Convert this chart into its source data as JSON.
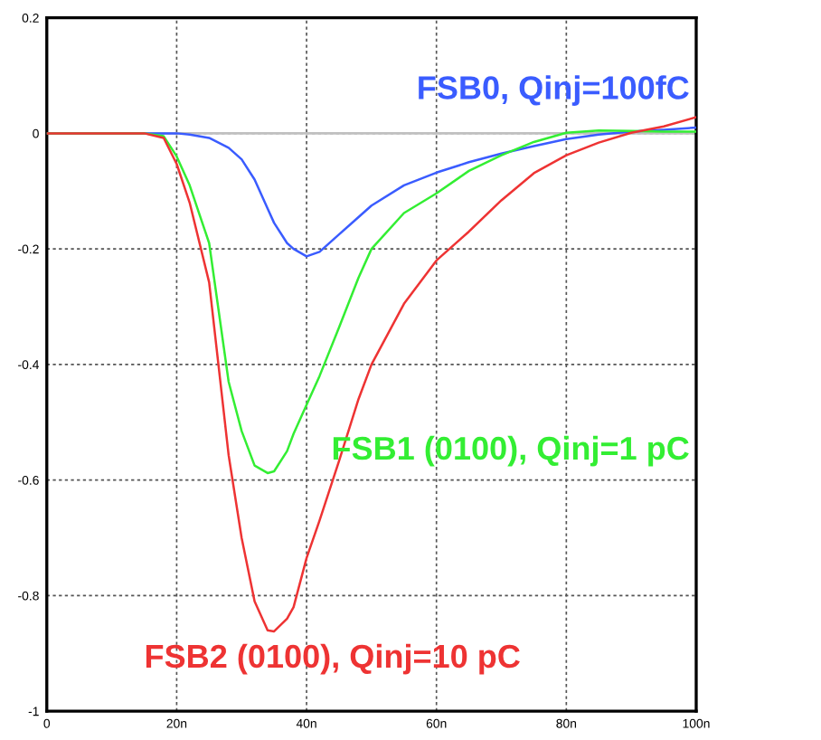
{
  "chart_data": {
    "type": "line",
    "x": [
      0,
      15,
      18,
      20,
      22,
      25,
      28,
      30,
      32,
      34,
      35,
      37,
      38,
      40,
      42,
      45,
      48,
      50,
      55,
      60,
      65,
      70,
      75,
      80,
      85,
      90,
      95,
      100
    ],
    "series": [
      {
        "name": "FSB0, Qinj=100fC",
        "color": "#3a5cff",
        "values": [
          0,
          0,
          0,
          0,
          -0.002,
          -0.008,
          -0.025,
          -0.045,
          -0.08,
          -0.13,
          -0.155,
          -0.19,
          -0.2,
          -0.213,
          -0.205,
          -0.175,
          -0.145,
          -0.125,
          -0.09,
          -0.068,
          -0.05,
          -0.035,
          -0.022,
          -0.01,
          -0.002,
          0.003,
          0.006,
          0.01
        ]
      },
      {
        "name": "FSB1 (0100), Qinj=1 pC",
        "color": "#33ee33",
        "values": [
          0,
          0,
          -0.005,
          -0.04,
          -0.09,
          -0.19,
          -0.43,
          -0.515,
          -0.575,
          -0.588,
          -0.585,
          -0.55,
          -0.52,
          -0.47,
          -0.42,
          -0.336,
          -0.25,
          -0.2,
          -0.138,
          -0.104,
          -0.065,
          -0.038,
          -0.015,
          0.001,
          0.005,
          0.004,
          0.003,
          0.003
        ]
      },
      {
        "name": "FSB2 (0100), Qinj=10 pC",
        "color": "#ee3333",
        "values": [
          0,
          0,
          -0.008,
          -0.053,
          -0.12,
          -0.258,
          -0.557,
          -0.7,
          -0.81,
          -0.86,
          -0.862,
          -0.84,
          -0.82,
          -0.735,
          -0.67,
          -0.567,
          -0.46,
          -0.4,
          -0.295,
          -0.22,
          -0.17,
          -0.116,
          -0.069,
          -0.038,
          -0.016,
          0.001,
          0.012,
          0.028
        ]
      }
    ],
    "xlim": [
      0,
      100
    ],
    "ylim": [
      -1,
      0.2
    ],
    "xticks": [
      0,
      {
        "value": 20,
        "label": "20n"
      },
      {
        "value": 40,
        "label": "40n"
      },
      {
        "value": 60,
        "label": "60n"
      },
      {
        "value": 80,
        "label": "80n"
      },
      {
        "value": 100,
        "label": "100n"
      }
    ],
    "yticks": [
      0.2,
      0,
      -0.2,
      -0.4,
      -0.6,
      -0.8,
      -1
    ],
    "grid": true,
    "ref_lines": [
      {
        "axis": "y",
        "value": 0,
        "color": "#c0c0c0",
        "line_style": "solid"
      }
    ]
  }
}
